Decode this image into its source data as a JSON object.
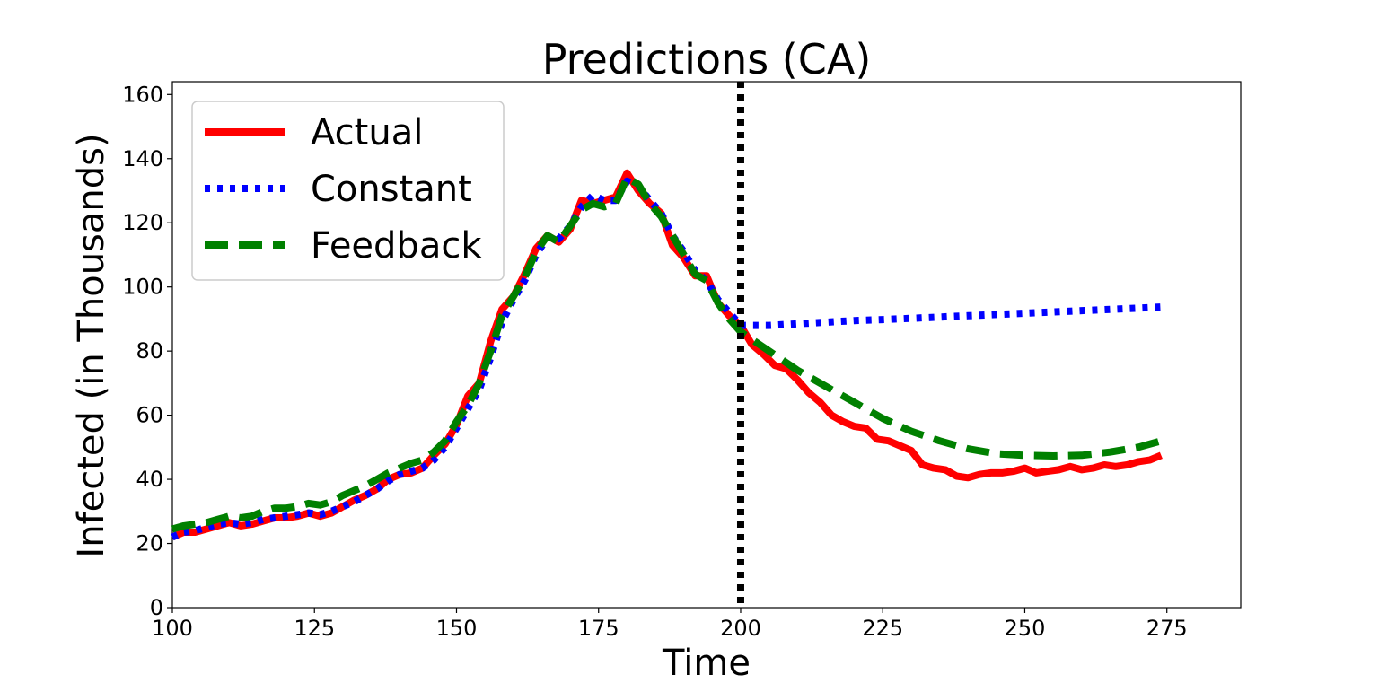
{
  "chart_data": {
    "type": "line",
    "title": "Predictions (CA)",
    "xlabel": "Time",
    "ylabel": "Infected (in Thousands)",
    "xlim": [
      100,
      288
    ],
    "ylim": [
      0,
      164
    ],
    "xticks": [
      100,
      125,
      150,
      175,
      200,
      225,
      250,
      275
    ],
    "yticks": [
      0,
      20,
      40,
      60,
      80,
      100,
      120,
      140,
      160
    ],
    "xtick_labels": [
      "100",
      "125",
      "150",
      "175",
      "200",
      "225",
      "250",
      "275"
    ],
    "ytick_labels": [
      "0",
      "20",
      "40",
      "60",
      "80",
      "100",
      "120",
      "140",
      "160"
    ],
    "legend_position": "top-left",
    "grid": false,
    "vline": {
      "x": 200,
      "style": "dotted",
      "color": "#000000"
    },
    "series": [
      {
        "name": "Actual",
        "color": "#ff0000",
        "style": "solid",
        "points": [
          [
            100,
            22
          ],
          [
            102,
            23.5
          ],
          [
            104,
            23.5
          ],
          [
            106,
            24.5
          ],
          [
            108,
            25.5
          ],
          [
            110,
            26.5
          ],
          [
            112,
            25.5
          ],
          [
            114,
            26
          ],
          [
            116,
            27
          ],
          [
            118,
            28
          ],
          [
            120,
            28
          ],
          [
            122,
            28.5
          ],
          [
            124,
            29.5
          ],
          [
            126,
            28.5
          ],
          [
            128,
            29.5
          ],
          [
            130,
            31.5
          ],
          [
            132,
            33.5
          ],
          [
            134,
            35
          ],
          [
            136,
            37
          ],
          [
            138,
            40
          ],
          [
            140,
            41.5
          ],
          [
            142,
            42
          ],
          [
            144,
            43.5
          ],
          [
            146,
            47.5
          ],
          [
            148,
            51
          ],
          [
            150,
            57
          ],
          [
            152,
            66
          ],
          [
            154,
            70
          ],
          [
            156,
            83
          ],
          [
            158,
            93
          ],
          [
            160,
            97
          ],
          [
            162,
            104
          ],
          [
            164,
            112
          ],
          [
            166,
            116
          ],
          [
            168,
            114
          ],
          [
            170,
            118
          ],
          [
            172,
            127
          ],
          [
            174,
            126
          ],
          [
            176,
            127
          ],
          [
            178,
            128
          ],
          [
            180,
            135.5
          ],
          [
            182,
            130
          ],
          [
            184,
            126
          ],
          [
            186,
            123
          ],
          [
            188,
            113
          ],
          [
            190,
            109
          ],
          [
            192,
            103.5
          ],
          [
            194,
            103.5
          ],
          [
            196,
            95
          ],
          [
            198,
            91
          ],
          [
            200,
            88
          ],
          [
            202,
            82
          ],
          [
            204,
            79
          ],
          [
            206,
            75.5
          ],
          [
            208,
            74.5
          ],
          [
            210,
            71
          ],
          [
            212,
            67
          ],
          [
            214,
            64
          ],
          [
            216,
            60
          ],
          [
            218,
            58
          ],
          [
            220,
            56.5
          ],
          [
            222,
            56
          ],
          [
            224,
            52.5
          ],
          [
            226,
            52
          ],
          [
            228,
            50.5
          ],
          [
            230,
            49
          ],
          [
            232,
            44.5
          ],
          [
            234,
            43.5
          ],
          [
            236,
            43
          ],
          [
            238,
            41
          ],
          [
            240,
            40.5
          ],
          [
            242,
            41.5
          ],
          [
            244,
            42
          ],
          [
            246,
            42
          ],
          [
            248,
            42.5
          ],
          [
            250,
            43.5
          ],
          [
            252,
            42
          ],
          [
            254,
            42.5
          ],
          [
            256,
            43
          ],
          [
            258,
            44
          ],
          [
            260,
            43
          ],
          [
            262,
            43.5
          ],
          [
            264,
            44.5
          ],
          [
            266,
            44
          ],
          [
            268,
            44.5
          ],
          [
            270,
            45.5
          ],
          [
            272,
            46
          ],
          [
            274,
            47.5
          ]
        ]
      },
      {
        "name": "Constant",
        "color": "#0000ff",
        "style": "dotted",
        "points": [
          [
            100,
            22
          ],
          [
            102,
            23.5
          ],
          [
            104,
            24
          ],
          [
            106,
            25
          ],
          [
            108,
            26
          ],
          [
            110,
            26.5
          ],
          [
            112,
            26
          ],
          [
            114,
            26.5
          ],
          [
            116,
            27.5
          ],
          [
            118,
            28
          ],
          [
            120,
            28.5
          ],
          [
            122,
            29
          ],
          [
            124,
            29.5
          ],
          [
            126,
            29
          ],
          [
            128,
            30
          ],
          [
            130,
            31.5
          ],
          [
            132,
            33
          ],
          [
            134,
            35
          ],
          [
            136,
            37
          ],
          [
            138,
            39.5
          ],
          [
            140,
            41.5
          ],
          [
            142,
            42.5
          ],
          [
            144,
            43.5
          ],
          [
            146,
            46
          ],
          [
            148,
            50
          ],
          [
            150,
            56
          ],
          [
            152,
            62
          ],
          [
            154,
            68
          ],
          [
            156,
            78
          ],
          [
            158,
            89
          ],
          [
            160,
            96
          ],
          [
            162,
            102
          ],
          [
            164,
            110
          ],
          [
            166,
            115.5
          ],
          [
            168,
            115
          ],
          [
            170,
            119
          ],
          [
            172,
            125
          ],
          [
            174,
            128.5
          ],
          [
            176,
            127
          ],
          [
            178,
            127
          ],
          [
            180,
            133
          ],
          [
            182,
            131.5
          ],
          [
            184,
            127
          ],
          [
            186,
            123
          ],
          [
            188,
            116
          ],
          [
            190,
            111
          ],
          [
            192,
            105
          ],
          [
            194,
            102
          ],
          [
            196,
            96
          ],
          [
            198,
            92
          ],
          [
            200,
            88
          ],
          [
            205,
            88
          ],
          [
            210,
            88.5
          ],
          [
            215,
            89
          ],
          [
            220,
            89.5
          ],
          [
            225,
            89.8
          ],
          [
            230,
            90.2
          ],
          [
            235,
            90.6
          ],
          [
            240,
            91
          ],
          [
            245,
            91.4
          ],
          [
            250,
            91.8
          ],
          [
            255,
            92.2
          ],
          [
            260,
            92.6
          ],
          [
            265,
            93
          ],
          [
            270,
            93.4
          ],
          [
            275,
            93.8
          ]
        ]
      },
      {
        "name": "Feedback",
        "color": "#008000",
        "style": "dashed",
        "points": [
          [
            100,
            24.5
          ],
          [
            102,
            25.5
          ],
          [
            104,
            26
          ],
          [
            106,
            26.5
          ],
          [
            108,
            27.5
          ],
          [
            110,
            28.5
          ],
          [
            112,
            28
          ],
          [
            114,
            28.5
          ],
          [
            116,
            30
          ],
          [
            118,
            31
          ],
          [
            120,
            31
          ],
          [
            122,
            31.5
          ],
          [
            124,
            32.5
          ],
          [
            126,
            32
          ],
          [
            128,
            33
          ],
          [
            130,
            35
          ],
          [
            132,
            36.5
          ],
          [
            134,
            38
          ],
          [
            136,
            40
          ],
          [
            138,
            42
          ],
          [
            140,
            43.5
          ],
          [
            142,
            45
          ],
          [
            144,
            46
          ],
          [
            146,
            48.5
          ],
          [
            148,
            52
          ],
          [
            150,
            58
          ],
          [
            152,
            63
          ],
          [
            154,
            70
          ],
          [
            156,
            80
          ],
          [
            158,
            91
          ],
          [
            160,
            97
          ],
          [
            162,
            103
          ],
          [
            164,
            111
          ],
          [
            166,
            116
          ],
          [
            168,
            114
          ],
          [
            170,
            119
          ],
          [
            172,
            124
          ],
          [
            174,
            126
          ],
          [
            176,
            125
          ],
          [
            178,
            126
          ],
          [
            180,
            134
          ],
          [
            182,
            132
          ],
          [
            184,
            126
          ],
          [
            186,
            122
          ],
          [
            188,
            116
          ],
          [
            190,
            110
          ],
          [
            192,
            104
          ],
          [
            194,
            102
          ],
          [
            196,
            95
          ],
          [
            198,
            90
          ],
          [
            200,
            86
          ],
          [
            205,
            80
          ],
          [
            210,
            74
          ],
          [
            215,
            69
          ],
          [
            220,
            64
          ],
          [
            225,
            59
          ],
          [
            230,
            55
          ],
          [
            235,
            52
          ],
          [
            240,
            49.5
          ],
          [
            245,
            48
          ],
          [
            250,
            47.5
          ],
          [
            255,
            47.3
          ],
          [
            260,
            47.5
          ],
          [
            265,
            48.5
          ],
          [
            270,
            50
          ],
          [
            274,
            52
          ]
        ]
      }
    ]
  }
}
